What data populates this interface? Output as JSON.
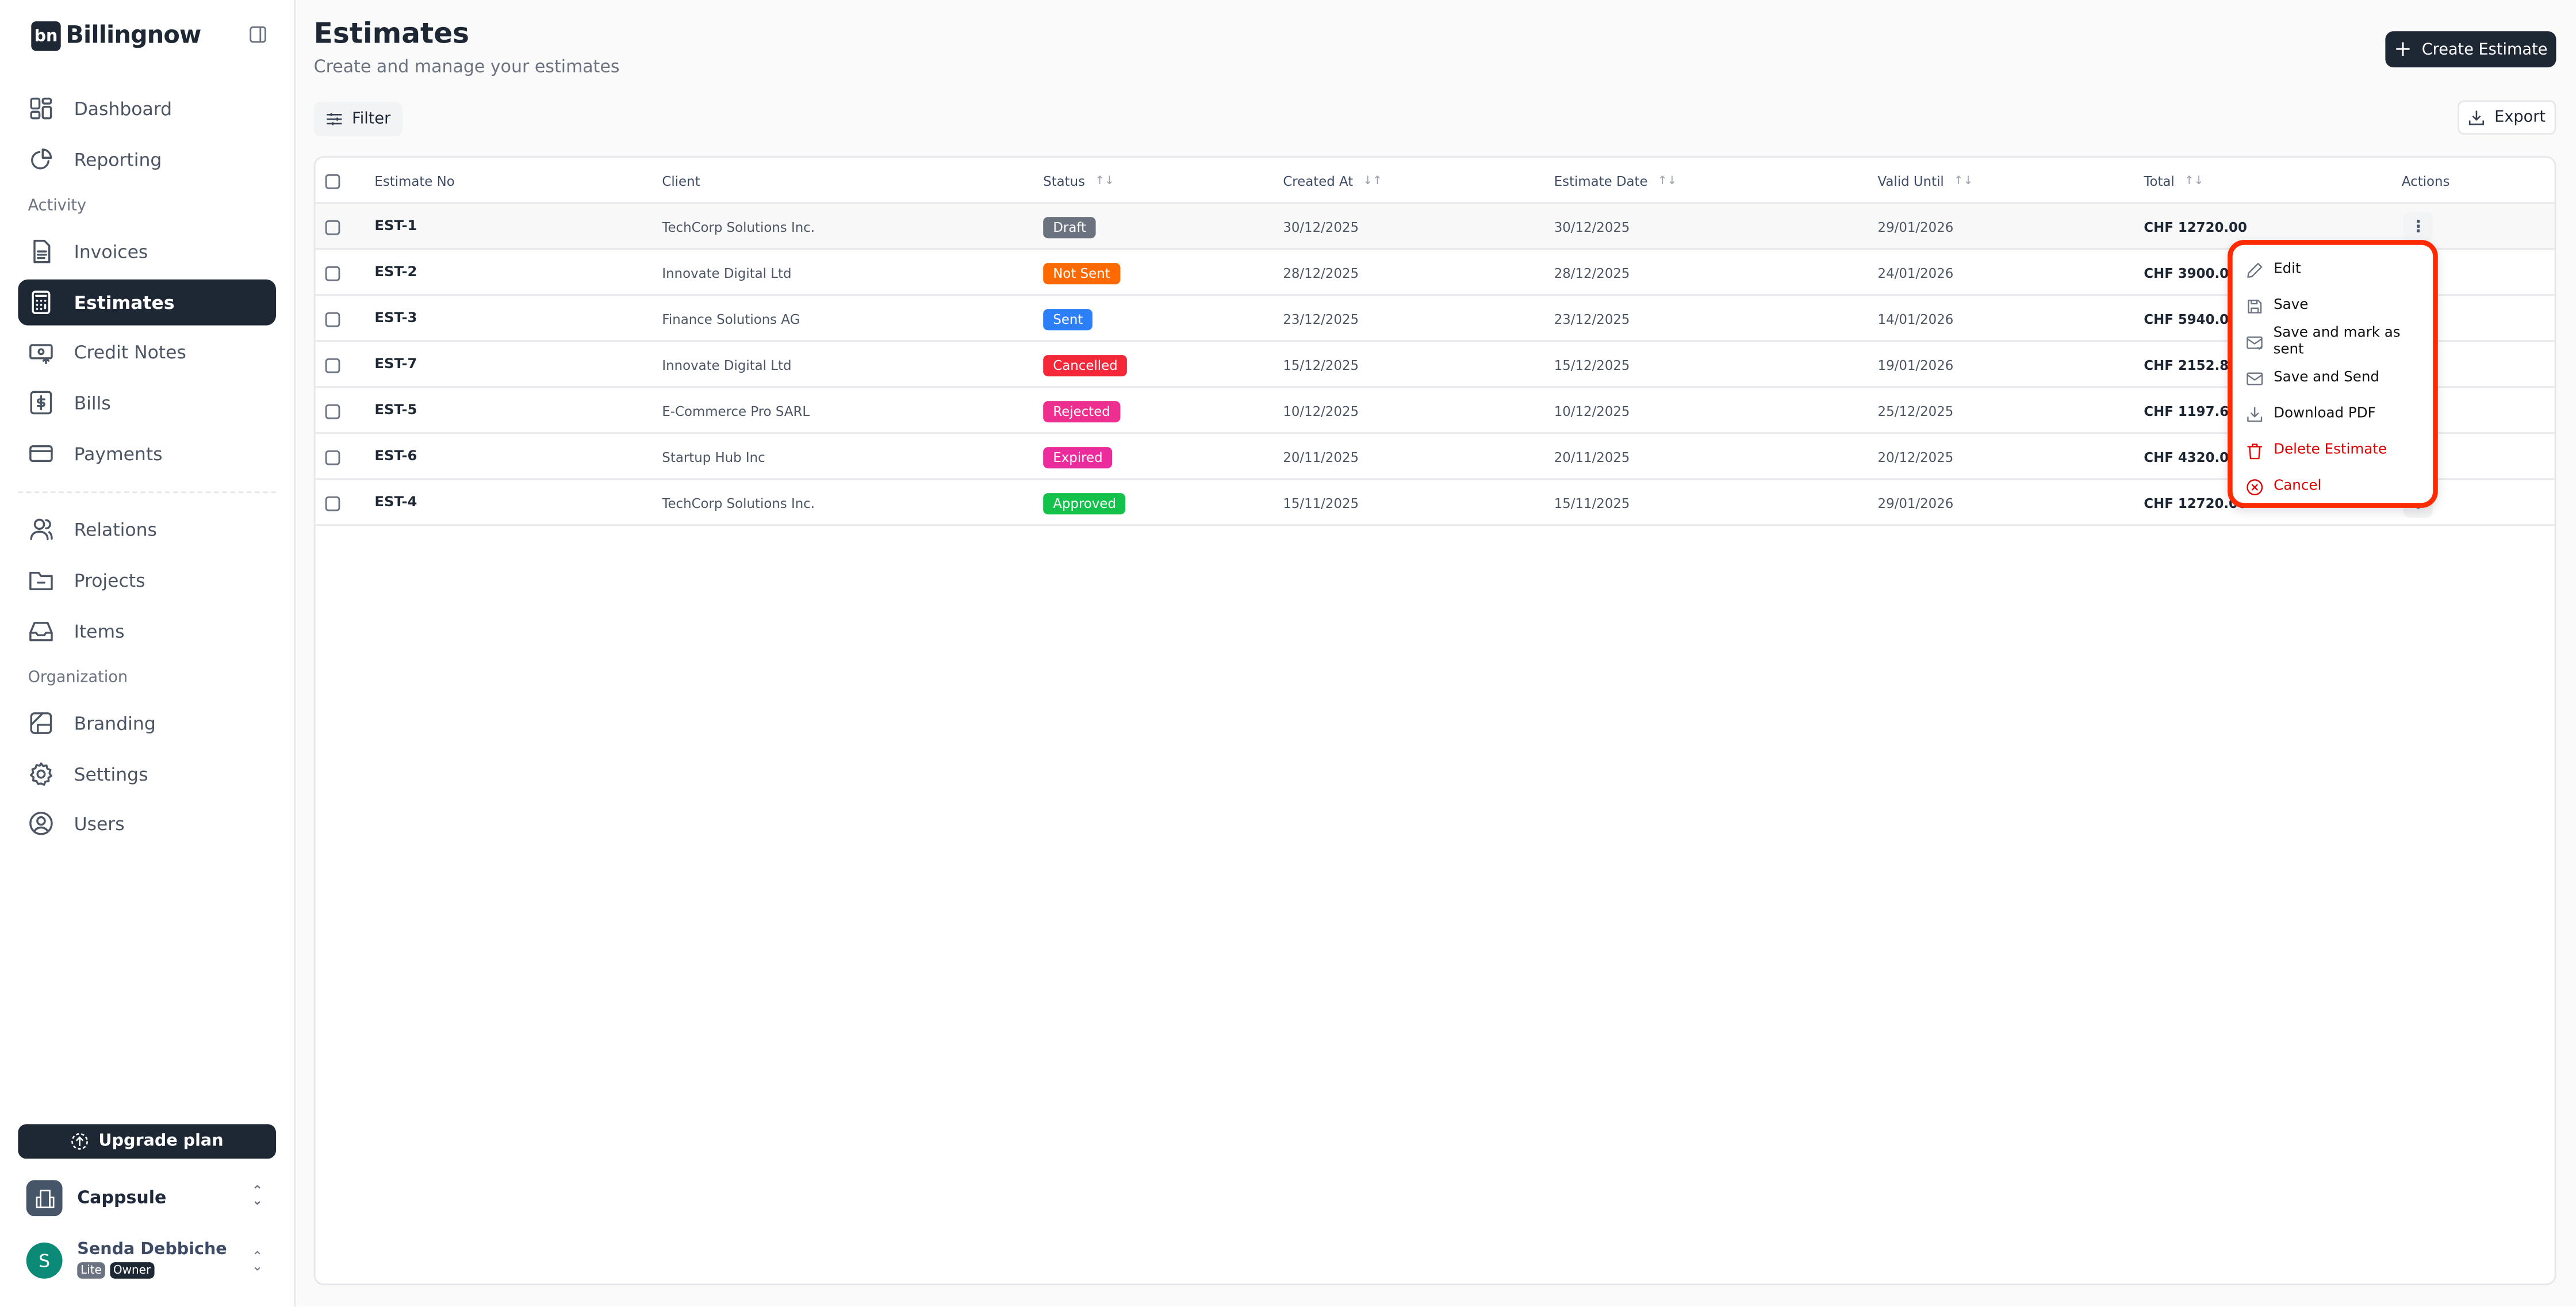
{
  "app": {
    "logo_mark": "bn",
    "name": "Billingnow"
  },
  "sidebar": {
    "items": [
      {
        "label": "Dashboard",
        "icon": "dashboard-icon"
      },
      {
        "label": "Reporting",
        "icon": "pie-chart-icon"
      },
      {
        "label": "Invoices",
        "icon": "file-text-icon"
      },
      {
        "label": "Estimates",
        "icon": "calculator-icon",
        "active": true
      },
      {
        "label": "Credit Notes",
        "icon": "receipt-icon"
      },
      {
        "label": "Bills",
        "icon": "dollar-icon"
      },
      {
        "label": "Payments",
        "icon": "credit-card-icon"
      },
      {
        "label": "Relations",
        "icon": "users-icon"
      },
      {
        "label": "Projects",
        "icon": "folder-icon"
      },
      {
        "label": "Items",
        "icon": "inbox-icon"
      },
      {
        "label": "Branding",
        "icon": "palette-icon"
      },
      {
        "label": "Settings",
        "icon": "gear-icon"
      },
      {
        "label": "Users",
        "icon": "user-circle-icon"
      }
    ],
    "sections": {
      "activity": "Activity",
      "organization": "Organization"
    },
    "upgrade_label": "Upgrade plan",
    "org_name": "Cappsule",
    "user": {
      "initial": "S",
      "name": "Senda Debbiche",
      "plan": "Lite",
      "role": "Owner"
    }
  },
  "header": {
    "title": "Estimates",
    "subtitle": "Create and manage your estimates",
    "create_label": "Create Estimate",
    "filter_label": "Filter",
    "export_label": "Export"
  },
  "table": {
    "columns": [
      "Estimate No",
      "Client",
      "Status",
      "Created At",
      "Estimate Date",
      "Valid Until",
      "Total",
      "Actions"
    ],
    "rows": [
      {
        "no": "EST-1",
        "client": "TechCorp Solutions Inc.",
        "status": "Draft",
        "color": "#6b7280",
        "created": "30/12/2025",
        "date": "30/12/2025",
        "valid": "29/01/2026",
        "total": "CHF 12720.00"
      },
      {
        "no": "EST-2",
        "client": "Innovate Digital Ltd",
        "status": "Not Sent",
        "color": "#ff6a00",
        "created": "28/12/2025",
        "date": "28/12/2025",
        "valid": "24/01/2026",
        "total": "CHF 3900.00"
      },
      {
        "no": "EST-3",
        "client": "Finance Solutions AG",
        "status": "Sent",
        "color": "#2d7ff9",
        "created": "23/12/2025",
        "date": "23/12/2025",
        "valid": "14/01/2026",
        "total": "CHF 5940.00"
      },
      {
        "no": "EST-7",
        "client": "Innovate Digital Ltd",
        "status": "Cancelled",
        "color": "#f5283a",
        "created": "15/12/2025",
        "date": "15/12/2025",
        "valid": "19/01/2026",
        "total": "CHF 2152.80"
      },
      {
        "no": "EST-5",
        "client": "E-Commerce Pro SARL",
        "status": "Rejected",
        "color": "#ef2f8f",
        "created": "10/12/2025",
        "date": "10/12/2025",
        "valid": "25/12/2025",
        "total": "CHF 1197.60"
      },
      {
        "no": "EST-6",
        "client": "Startup Hub Inc",
        "status": "Expired",
        "color": "#ec2c9c",
        "created": "20/11/2025",
        "date": "20/11/2025",
        "valid": "20/12/2025",
        "total": "CHF 4320.00"
      },
      {
        "no": "EST-4",
        "client": "TechCorp Solutions Inc.",
        "status": "Approved",
        "color": "#12c24a",
        "created": "15/11/2025",
        "date": "15/11/2025",
        "valid": "29/01/2026",
        "total": "CHF 12720.00"
      }
    ]
  },
  "menu": {
    "items": [
      {
        "label": "Edit",
        "icon": "pencil-icon"
      },
      {
        "label": "Save",
        "icon": "save-icon"
      },
      {
        "label": "Save and mark as sent",
        "icon": "mail-check-icon"
      },
      {
        "label": "Save and Send",
        "icon": "mail-icon"
      },
      {
        "label": "Download PDF",
        "icon": "download-icon"
      },
      {
        "label": "Delete Estimate",
        "icon": "trash-icon",
        "danger": true
      },
      {
        "label": "Cancel",
        "icon": "x-circle-icon",
        "danger": true
      }
    ]
  }
}
